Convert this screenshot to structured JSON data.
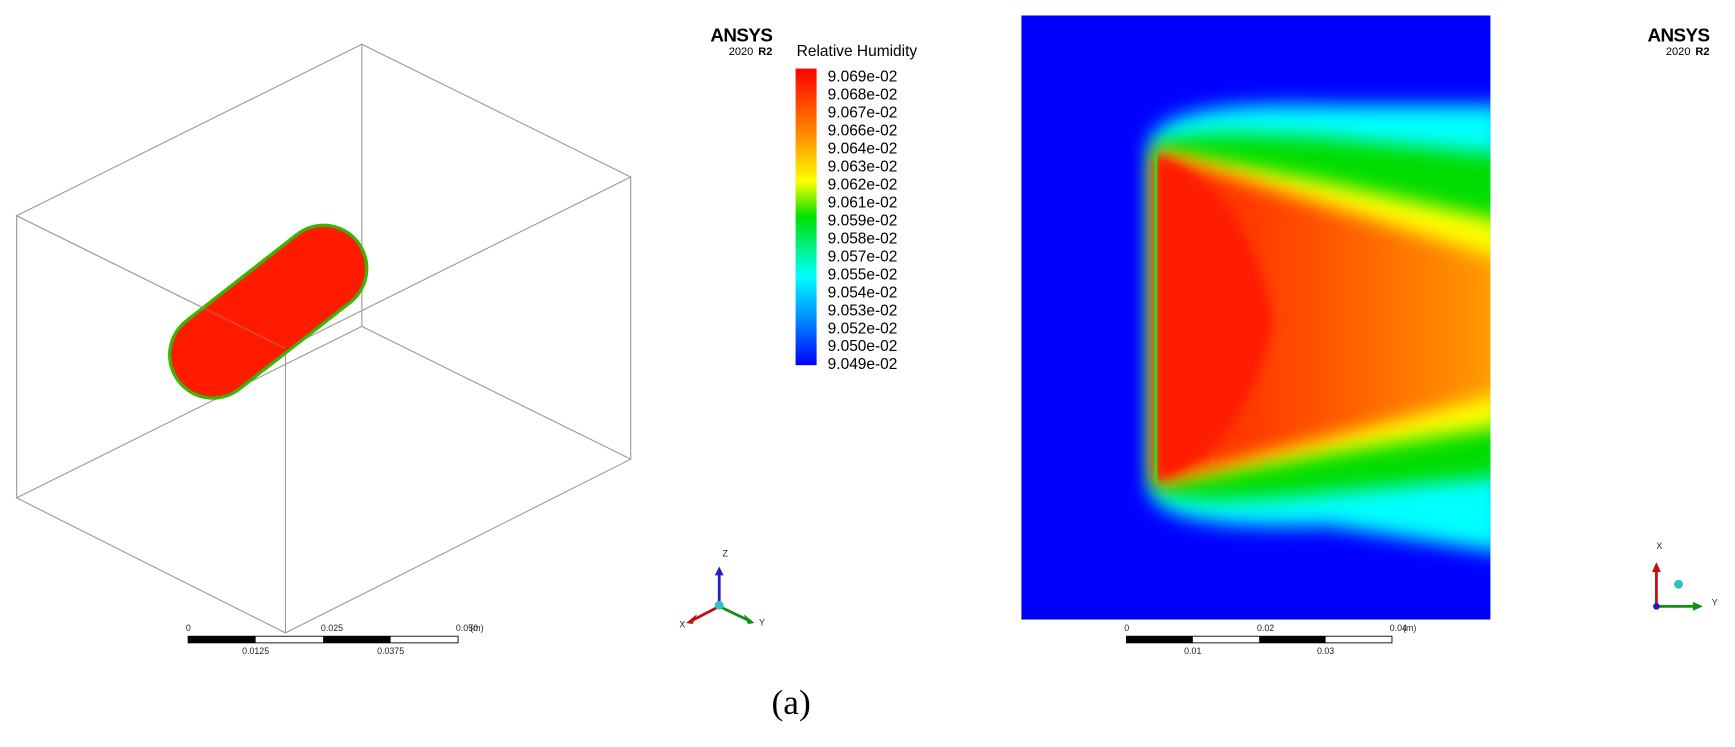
{
  "left_panel": {
    "logo": "ANSYS",
    "version": "2020",
    "release": "R2",
    "legend": {
      "title": "Relative Humidity",
      "labels": [
        "9.069e-02",
        "9.068e-02",
        "9.067e-02",
        "9.066e-02",
        "9.064e-02",
        "9.063e-02",
        "9.062e-02",
        "9.061e-02",
        "9.059e-02",
        "9.058e-02",
        "9.057e-02",
        "9.055e-02",
        "9.054e-02",
        "9.053e-02",
        "9.052e-02",
        "9.050e-02",
        "9.049e-02"
      ]
    },
    "scale_bar": {
      "top_labels": [
        "0",
        "0.025",
        "0.050"
      ],
      "unit": "(m)",
      "bottom_labels": [
        "0.0125",
        "0.0375"
      ]
    },
    "triad": {
      "x": "X",
      "y": "Y",
      "z": "Z"
    }
  },
  "right_panel": {
    "logo": "ANSYS",
    "version": "2020",
    "release": "R2",
    "scale_bar": {
      "top_labels": [
        "0",
        "0.02",
        "0.04"
      ],
      "unit": "(m)",
      "bottom_labels": [
        "0.01",
        "0.03"
      ]
    },
    "triad": {
      "x": "X",
      "y": "Y"
    }
  },
  "caption": "(a)"
}
